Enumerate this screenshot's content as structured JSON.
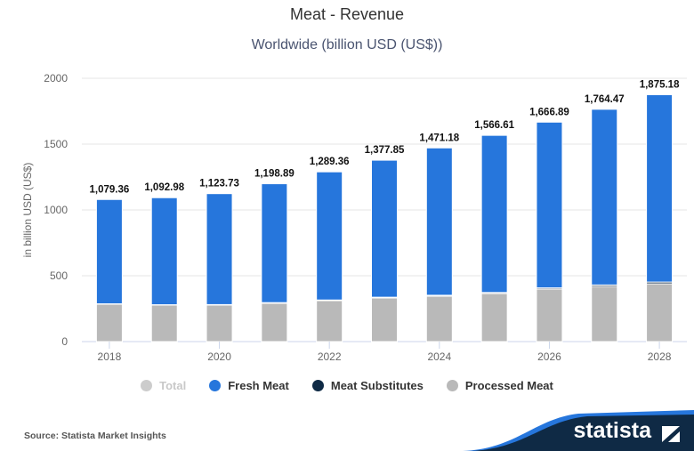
{
  "header": {
    "title": "Meat - Revenue",
    "subtitle": "Worldwide (billion USD (US$))"
  },
  "chart_data": {
    "type": "bar",
    "stacked": true,
    "title": "Meat - Revenue",
    "subtitle": "Worldwide (billion USD (US$))",
    "xlabel": "",
    "ylabel": "in billion USD (US$)",
    "ylim": [
      0,
      2000
    ],
    "yticks": [
      "0",
      "500",
      "1000",
      "1500",
      "2000"
    ],
    "xtick_labels": [
      "2018",
      "2020",
      "2022",
      "2024",
      "2026",
      "2028"
    ],
    "categories": [
      "2018",
      "2019",
      "2020",
      "2021",
      "2022",
      "2023",
      "2024",
      "2025",
      "2026",
      "2027",
      "2028"
    ],
    "totals": [
      1079.36,
      1092.98,
      1123.73,
      1198.89,
      1289.36,
      1377.85,
      1471.18,
      1566.61,
      1666.89,
      1764.47,
      1875.18
    ],
    "total_labels": [
      "1,079.36",
      "1,092.98",
      "1,123.73",
      "1,198.89",
      "1,289.36",
      "1,377.85",
      "1,471.18",
      "1,566.61",
      "1,666.89",
      "1,764.47",
      "1,875.18"
    ],
    "series": [
      {
        "name": "Processed Meat",
        "color": "#b9b9b9",
        "values": [
          284,
          277,
          277,
          291,
          311,
          331,
          345,
          365,
          399,
          419,
          439
        ]
      },
      {
        "name": "Meat Substitutes",
        "color": "#0f2a45",
        "values": [
          3,
          3,
          4,
          5,
          5,
          6,
          7,
          8,
          9,
          11,
          13
        ]
      },
      {
        "name": "Fresh Meat",
        "color": "#2676dc",
        "values": [
          792.36,
          812.98,
          842.73,
          902.89,
          973.36,
          1040.85,
          1119.18,
          1193.61,
          1258.89,
          1334.47,
          1423.18
        ]
      }
    ],
    "grid": true,
    "legend_position": "bottom"
  },
  "legend": {
    "items": [
      {
        "label": "Total",
        "color": "#cccccc",
        "muted": true
      },
      {
        "label": "Fresh Meat",
        "color": "#2676dc"
      },
      {
        "label": "Meat Substitutes",
        "color": "#0f2a45"
      },
      {
        "label": "Processed Meat",
        "color": "#b9b9b9"
      }
    ]
  },
  "footer": {
    "source": "Source: Statista Market Insights",
    "logo_text": "statista"
  }
}
